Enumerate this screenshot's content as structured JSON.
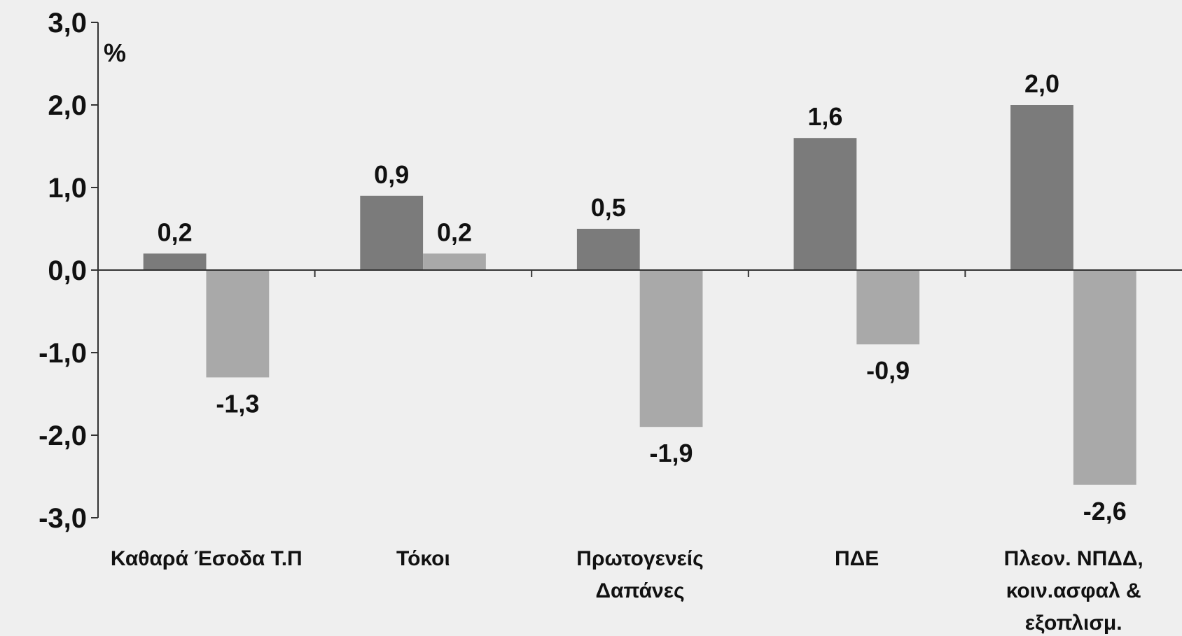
{
  "chart_data": {
    "type": "bar",
    "y_label": "%",
    "categories": [
      [
        "Καθαρά Έσοδα Τ.Π"
      ],
      [
        "Τόκοι"
      ],
      [
        "Πρωτογενείς",
        "Δαπάνες"
      ],
      [
        "ΠΔΕ"
      ],
      [
        "Πλεον. ΝΠΔΔ,",
        "κοιν.ασφαλ &",
        "εξοπλισμ."
      ]
    ],
    "series": [
      {
        "color": "#7b7b7b",
        "values": [
          0.2,
          0.9,
          0.5,
          1.6,
          2.0
        ],
        "value_labels": [
          "0,2",
          "0,9",
          "0,5",
          "1,6",
          "2,0"
        ]
      },
      {
        "color": "#a9a9a9",
        "values": [
          -1.3,
          0.2,
          -1.9,
          -0.9,
          -2.6
        ],
        "value_labels": [
          "-1,3",
          "0,2",
          "-1,9",
          "-0,9",
          "-2,6"
        ]
      }
    ],
    "ylim": [
      -3,
      3
    ],
    "yticks": [
      {
        "value": -3,
        "label": "-3,0"
      },
      {
        "value": -2,
        "label": "-2,0"
      },
      {
        "value": -1,
        "label": "-1,0"
      },
      {
        "value": 0,
        "label": "0,0"
      },
      {
        "value": 1,
        "label": "1,0"
      },
      {
        "value": 2,
        "label": "2,0"
      },
      {
        "value": 3,
        "label": "3,0"
      }
    ],
    "grid": false
  }
}
